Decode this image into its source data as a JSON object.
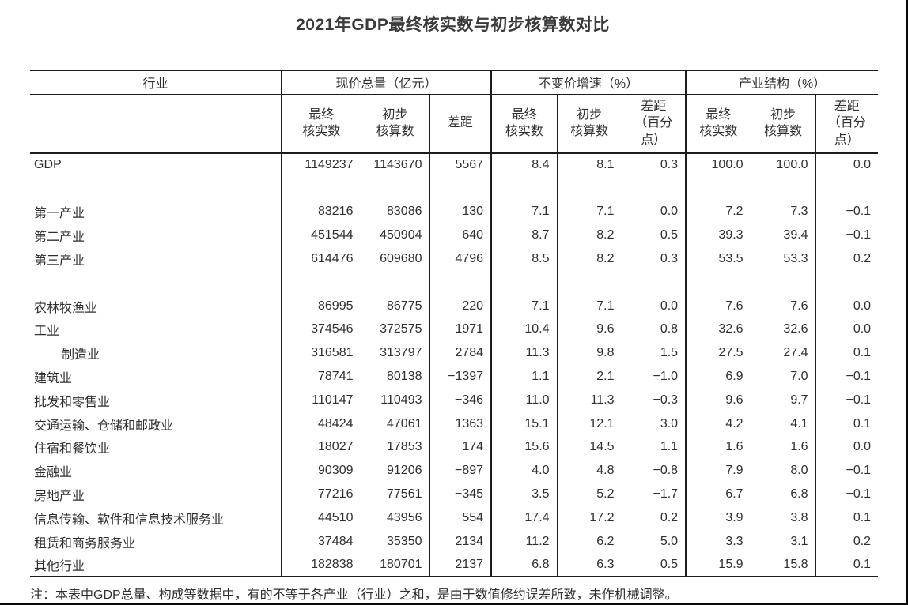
{
  "title": "2021年GDP最终核实数与初步核算数对比",
  "table": {
    "group_headers": [
      "行业",
      "现价总量（亿元）",
      "不变价增速（%）",
      "产业结构（%）"
    ],
    "sub_headers": [
      "最终\n核实数",
      "初步\n核算数",
      "差距",
      "最终\n核实数",
      "初步\n核算数",
      "差距\n（百分\n点）",
      "最终\n核实数",
      "初步\n核算数",
      "差距\n（百分\n点）"
    ],
    "rows": [
      {
        "label": "GDP",
        "indent": false,
        "values": [
          "1149237",
          "1143670",
          "5567",
          "8.4",
          "8.1",
          "0.3",
          "100.0",
          "100.0",
          "0.0"
        ]
      },
      {
        "spacer": true,
        "label": "",
        "values": [
          "",
          "",
          "",
          "",
          "",
          "",
          "",
          "",
          ""
        ]
      },
      {
        "label": "第一产业",
        "indent": false,
        "values": [
          "83216",
          "83086",
          "130",
          "7.1",
          "7.1",
          "0.0",
          "7.2",
          "7.3",
          "−0.1"
        ]
      },
      {
        "label": "第二产业",
        "indent": false,
        "values": [
          "451544",
          "450904",
          "640",
          "8.7",
          "8.2",
          "0.5",
          "39.3",
          "39.4",
          "−0.1"
        ]
      },
      {
        "label": "第三产业",
        "indent": false,
        "values": [
          "614476",
          "609680",
          "4796",
          "8.5",
          "8.2",
          "0.3",
          "53.5",
          "53.3",
          "0.2"
        ]
      },
      {
        "spacer": true,
        "label": "",
        "values": [
          "",
          "",
          "",
          "",
          "",
          "",
          "",
          "",
          ""
        ]
      },
      {
        "label": "农林牧渔业",
        "indent": false,
        "values": [
          "86995",
          "86775",
          "220",
          "7.1",
          "7.1",
          "0.0",
          "7.6",
          "7.6",
          "0.0"
        ]
      },
      {
        "label": "工业",
        "indent": false,
        "values": [
          "374546",
          "372575",
          "1971",
          "10.4",
          "9.6",
          "0.8",
          "32.6",
          "32.6",
          "0.0"
        ]
      },
      {
        "label": "制造业",
        "indent": true,
        "values": [
          "316581",
          "313797",
          "2784",
          "11.3",
          "9.8",
          "1.5",
          "27.5",
          "27.4",
          "0.1"
        ]
      },
      {
        "label": "建筑业",
        "indent": false,
        "values": [
          "78741",
          "80138",
          "−1397",
          "1.1",
          "2.1",
          "−1.0",
          "6.9",
          "7.0",
          "−0.1"
        ]
      },
      {
        "label": "批发和零售业",
        "indent": false,
        "values": [
          "110147",
          "110493",
          "−346",
          "11.0",
          "11.3",
          "−0.3",
          "9.6",
          "9.7",
          "−0.1"
        ]
      },
      {
        "label": "交通运输、仓储和邮政业",
        "indent": false,
        "values": [
          "48424",
          "47061",
          "1363",
          "15.1",
          "12.1",
          "3.0",
          "4.2",
          "4.1",
          "0.1"
        ]
      },
      {
        "label": "住宿和餐饮业",
        "indent": false,
        "values": [
          "18027",
          "17853",
          "174",
          "15.6",
          "14.5",
          "1.1",
          "1.6",
          "1.6",
          "0.0"
        ]
      },
      {
        "label": "金融业",
        "indent": false,
        "values": [
          "90309",
          "91206",
          "−897",
          "4.0",
          "4.8",
          "−0.8",
          "7.9",
          "8.0",
          "−0.1"
        ]
      },
      {
        "label": "房地产业",
        "indent": false,
        "values": [
          "77216",
          "77561",
          "−345",
          "3.5",
          "5.2",
          "−1.7",
          "6.7",
          "6.8",
          "−0.1"
        ]
      },
      {
        "label": "信息传输、软件和信息技术服务业",
        "indent": false,
        "values": [
          "44510",
          "43956",
          "554",
          "17.4",
          "17.2",
          "0.2",
          "3.9",
          "3.8",
          "0.1"
        ]
      },
      {
        "label": "租赁和商务服务业",
        "indent": false,
        "values": [
          "37484",
          "35350",
          "2134",
          "11.2",
          "6.2",
          "5.0",
          "3.3",
          "3.1",
          "0.2"
        ]
      },
      {
        "label": "其他行业",
        "indent": false,
        "values": [
          "182838",
          "180701",
          "2137",
          "6.8",
          "6.3",
          "0.5",
          "15.9",
          "15.8",
          "0.1"
        ]
      }
    ]
  },
  "note": "注：本表中GDP总量、构成等数据中，有的不等于各产业（行业）之和，是由于数值修约误差所致，未作机械调整。"
}
